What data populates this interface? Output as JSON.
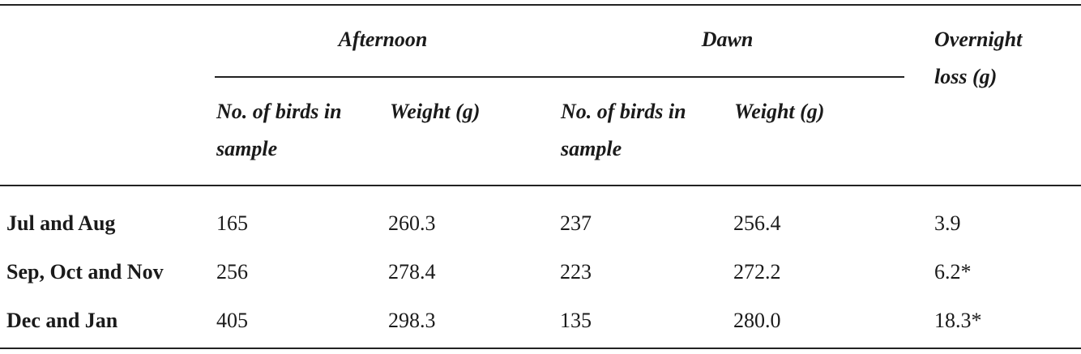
{
  "header": {
    "groups": [
      "Afternoon",
      "Dawn",
      "Overnight loss (g)"
    ],
    "columns": [
      "No. of birds in sample",
      "Weight (g)",
      "No. of birds in sample",
      "Weight (g)"
    ]
  },
  "table": {
    "rows": [
      [
        "Jul and Aug",
        "165",
        "260.3",
        "237",
        "256.4",
        "3.9"
      ],
      [
        "Sep, Oct and Nov",
        "256",
        "278.4",
        "223",
        "272.2",
        "6.2*"
      ],
      [
        "Dec and Jan",
        "405",
        "298.3",
        "135",
        "280.0",
        "18.3*"
      ]
    ]
  }
}
